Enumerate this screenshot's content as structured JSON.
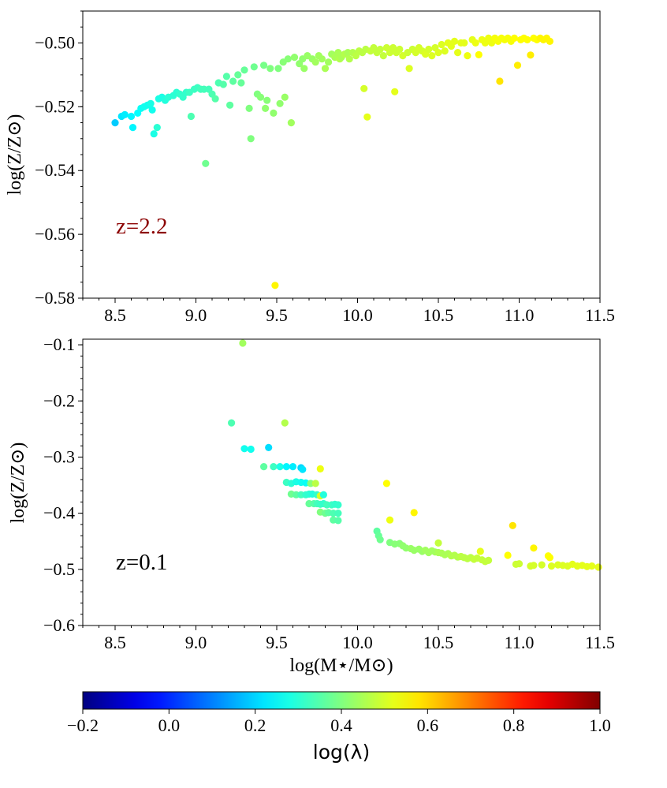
{
  "chart_data": [
    {
      "type": "scatter",
      "title": "",
      "annotation": "z=2.2",
      "annotation_color": "#8b0000",
      "xlabel": "",
      "ylabel": "log(Z/Z⊙)",
      "xlim": [
        8.3,
        11.5
      ],
      "ylim": [
        -0.58,
        -0.49
      ],
      "xticks": [
        8.5,
        9.0,
        9.5,
        10.0,
        10.5,
        11.0,
        11.5
      ],
      "xtick_labels": [
        "8.5",
        "9.0",
        "9.5",
        "10.0",
        "10.5",
        "11.0",
        "11.5"
      ],
      "yticks": [
        -0.58,
        -0.56,
        -0.54,
        -0.52,
        -0.5
      ],
      "ytick_labels": [
        "−0.58",
        "−0.56",
        "−0.54",
        "−0.52",
        "−0.50"
      ],
      "points": [
        [
          8.5,
          -0.525,
          0.19
        ],
        [
          8.54,
          -0.523,
          0.22
        ],
        [
          8.56,
          -0.5225,
          0.23
        ],
        [
          8.6,
          -0.523,
          0.24
        ],
        [
          8.61,
          -0.5265,
          0.24
        ],
        [
          8.64,
          -0.522,
          0.25
        ],
        [
          8.66,
          -0.5205,
          0.26
        ],
        [
          8.68,
          -0.52,
          0.27
        ],
        [
          8.7,
          -0.5195,
          0.27
        ],
        [
          8.72,
          -0.519,
          0.28
        ],
        [
          8.73,
          -0.521,
          0.27
        ],
        [
          8.74,
          -0.5285,
          0.28
        ],
        [
          8.76,
          -0.5265,
          0.3
        ],
        [
          8.77,
          -0.5175,
          0.28
        ],
        [
          8.79,
          -0.517,
          0.28
        ],
        [
          8.81,
          -0.518,
          0.29
        ],
        [
          8.83,
          -0.517,
          0.3
        ],
        [
          8.86,
          -0.5165,
          0.3
        ],
        [
          8.88,
          -0.5155,
          0.3
        ],
        [
          8.9,
          -0.516,
          0.31
        ],
        [
          8.92,
          -0.517,
          0.31
        ],
        [
          8.94,
          -0.5155,
          0.31
        ],
        [
          8.96,
          -0.5155,
          0.32
        ],
        [
          8.97,
          -0.523,
          0.34
        ],
        [
          8.99,
          -0.5145,
          0.32
        ],
        [
          9.01,
          -0.514,
          0.32
        ],
        [
          9.03,
          -0.5145,
          0.33
        ],
        [
          9.05,
          -0.5145,
          0.33
        ],
        [
          9.06,
          -0.5378,
          0.38
        ],
        [
          9.08,
          -0.5145,
          0.33
        ],
        [
          9.1,
          -0.516,
          0.34
        ],
        [
          9.12,
          -0.5175,
          0.35
        ],
        [
          9.14,
          -0.5125,
          0.34
        ],
        [
          9.17,
          -0.513,
          0.35
        ],
        [
          9.19,
          -0.5105,
          0.35
        ],
        [
          9.21,
          -0.5195,
          0.36
        ],
        [
          9.23,
          -0.512,
          0.36
        ],
        [
          9.26,
          -0.51,
          0.37
        ],
        [
          9.28,
          -0.5125,
          0.37
        ],
        [
          9.3,
          -0.5085,
          0.37
        ],
        [
          9.33,
          -0.5205,
          0.4
        ],
        [
          9.34,
          -0.53,
          0.4
        ],
        [
          9.36,
          -0.5075,
          0.38
        ],
        [
          9.38,
          -0.516,
          0.4
        ],
        [
          9.4,
          -0.517,
          0.41
        ],
        [
          9.42,
          -0.507,
          0.39
        ],
        [
          9.43,
          -0.5205,
          0.42
        ],
        [
          9.44,
          -0.518,
          0.41
        ],
        [
          9.46,
          -0.508,
          0.4
        ],
        [
          9.48,
          -0.522,
          0.42
        ],
        [
          9.49,
          -0.576,
          0.56
        ],
        [
          9.51,
          -0.508,
          0.4
        ],
        [
          9.52,
          -0.519,
          0.42
        ],
        [
          9.54,
          -0.506,
          0.41
        ],
        [
          9.55,
          -0.517,
          0.43
        ],
        [
          9.57,
          -0.505,
          0.41
        ],
        [
          9.59,
          -0.525,
          0.44
        ],
        [
          9.61,
          -0.5045,
          0.42
        ],
        [
          9.64,
          -0.5065,
          0.42
        ],
        [
          9.66,
          -0.505,
          0.42
        ],
        [
          9.67,
          -0.508,
          0.43
        ],
        [
          9.69,
          -0.504,
          0.43
        ],
        [
          9.72,
          -0.505,
          0.43
        ],
        [
          9.74,
          -0.506,
          0.44
        ],
        [
          9.76,
          -0.504,
          0.44
        ],
        [
          9.78,
          -0.505,
          0.44
        ],
        [
          9.8,
          -0.508,
          0.45
        ],
        [
          9.82,
          -0.506,
          0.44
        ],
        [
          9.84,
          -0.5035,
          0.44
        ],
        [
          9.86,
          -0.5045,
          0.45
        ],
        [
          9.88,
          -0.503,
          0.45
        ],
        [
          9.89,
          -0.505,
          0.46
        ],
        [
          9.9,
          -0.5045,
          0.45
        ],
        [
          9.92,
          -0.5035,
          0.46
        ],
        [
          9.94,
          -0.503,
          0.45
        ],
        [
          9.95,
          -0.505,
          0.46
        ],
        [
          9.97,
          -0.503,
          0.46
        ],
        [
          9.99,
          -0.504,
          0.47
        ],
        [
          10.01,
          -0.5025,
          0.47
        ],
        [
          10.03,
          -0.503,
          0.47
        ],
        [
          10.04,
          -0.5143,
          0.5
        ],
        [
          10.05,
          -0.502,
          0.47
        ],
        [
          10.06,
          -0.5232,
          0.52
        ],
        [
          10.08,
          -0.5025,
          0.48
        ],
        [
          10.1,
          -0.5015,
          0.48
        ],
        [
          10.12,
          -0.503,
          0.48
        ],
        [
          10.14,
          -0.502,
          0.48
        ],
        [
          10.16,
          -0.504,
          0.48
        ],
        [
          10.18,
          -0.5015,
          0.49
        ],
        [
          10.2,
          -0.503,
          0.49
        ],
        [
          10.22,
          -0.5015,
          0.49
        ],
        [
          10.23,
          -0.5153,
          0.52
        ],
        [
          10.24,
          -0.503,
          0.49
        ],
        [
          10.26,
          -0.502,
          0.49
        ],
        [
          10.28,
          -0.504,
          0.5
        ],
        [
          10.31,
          -0.503,
          0.49
        ],
        [
          10.32,
          -0.508,
          0.51
        ],
        [
          10.34,
          -0.502,
          0.49
        ],
        [
          10.36,
          -0.503,
          0.5
        ],
        [
          10.38,
          -0.5015,
          0.5
        ],
        [
          10.4,
          -0.5025,
          0.5
        ],
        [
          10.42,
          -0.5035,
          0.51
        ],
        [
          10.44,
          -0.502,
          0.5
        ],
        [
          10.46,
          -0.504,
          0.51
        ],
        [
          10.48,
          -0.5015,
          0.5
        ],
        [
          10.5,
          -0.503,
          0.51
        ],
        [
          10.52,
          -0.5005,
          0.51
        ],
        [
          10.54,
          -0.5025,
          0.51
        ],
        [
          10.56,
          -0.5,
          0.52
        ],
        [
          10.58,
          -0.501,
          0.52
        ],
        [
          10.6,
          -0.4995,
          0.52
        ],
        [
          10.62,
          -0.503,
          0.52
        ],
        [
          10.64,
          -0.5,
          0.52
        ],
        [
          10.66,
          -0.5,
          0.52
        ],
        [
          10.68,
          -0.504,
          0.53
        ],
        [
          10.71,
          -0.499,
          0.52
        ],
        [
          10.73,
          -0.5,
          0.53
        ],
        [
          10.75,
          -0.5037,
          0.55
        ],
        [
          10.77,
          -0.499,
          0.53
        ],
        [
          10.79,
          -0.5,
          0.53
        ],
        [
          10.81,
          -0.4985,
          0.53
        ],
        [
          10.83,
          -0.5,
          0.53
        ],
        [
          10.85,
          -0.4985,
          0.54
        ],
        [
          10.87,
          -0.4995,
          0.54
        ],
        [
          10.88,
          -0.512,
          0.58
        ],
        [
          10.89,
          -0.4985,
          0.54
        ],
        [
          10.91,
          -0.499,
          0.54
        ],
        [
          10.93,
          -0.4985,
          0.54
        ],
        [
          10.95,
          -0.4995,
          0.54
        ],
        [
          10.97,
          -0.4985,
          0.55
        ],
        [
          10.99,
          -0.507,
          0.57
        ],
        [
          11.01,
          -0.499,
          0.55
        ],
        [
          11.03,
          -0.4985,
          0.55
        ],
        [
          11.05,
          -0.499,
          0.55
        ],
        [
          11.07,
          -0.5038,
          0.57
        ],
        [
          11.09,
          -0.4985,
          0.55
        ],
        [
          11.11,
          -0.499,
          0.55
        ],
        [
          11.13,
          -0.4985,
          0.56
        ],
        [
          11.15,
          -0.499,
          0.56
        ],
        [
          11.17,
          -0.4985,
          0.56
        ],
        [
          11.19,
          -0.4995,
          0.56
        ]
      ]
    },
    {
      "type": "scatter",
      "title": "",
      "annotation": "z=0.1",
      "annotation_color": "#000000",
      "xlabel": "log(M⋆/M⊙)",
      "ylabel": "log(Z/Z⊙)",
      "xlim": [
        8.3,
        11.5
      ],
      "ylim": [
        -0.6,
        -0.09
      ],
      "xticks": [
        8.5,
        9.0,
        9.5,
        10.0,
        10.5,
        11.0,
        11.5
      ],
      "xtick_labels": [
        "8.5",
        "9.0",
        "9.5",
        "10.0",
        "10.5",
        "11.0",
        "11.5"
      ],
      "yticks": [
        -0.6,
        -0.5,
        -0.4,
        -0.3,
        -0.2,
        -0.1
      ],
      "ytick_labels": [
        "−0.6",
        "−0.5",
        "−0.4",
        "−0.3",
        "−0.2",
        "−0.1"
      ],
      "points": [
        [
          9.29,
          -0.097,
          0.44
        ],
        [
          9.22,
          -0.239,
          0.34
        ],
        [
          9.55,
          -0.239,
          0.46
        ],
        [
          9.3,
          -0.285,
          0.27
        ],
        [
          9.34,
          -0.286,
          0.27
        ],
        [
          9.45,
          -0.283,
          0.21
        ],
        [
          9.42,
          -0.317,
          0.36
        ],
        [
          9.48,
          -0.317,
          0.32
        ],
        [
          9.52,
          -0.317,
          0.28
        ],
        [
          9.56,
          -0.317,
          0.24
        ],
        [
          9.6,
          -0.317,
          0.23
        ],
        [
          9.65,
          -0.319,
          0.2
        ],
        [
          9.66,
          -0.322,
          0.22
        ],
        [
          9.77,
          -0.321,
          0.53
        ],
        [
          9.56,
          -0.345,
          0.32
        ],
        [
          9.59,
          -0.347,
          0.3
        ],
        [
          9.62,
          -0.344,
          0.28
        ],
        [
          9.65,
          -0.345,
          0.27
        ],
        [
          9.68,
          -0.346,
          0.26
        ],
        [
          9.71,
          -0.347,
          0.41
        ],
        [
          9.74,
          -0.347,
          0.47
        ],
        [
          9.59,
          -0.366,
          0.38
        ],
        [
          9.62,
          -0.367,
          0.36
        ],
        [
          9.65,
          -0.367,
          0.33
        ],
        [
          9.68,
          -0.367,
          0.31
        ],
        [
          9.7,
          -0.366,
          0.3
        ],
        [
          9.72,
          -0.366,
          0.29
        ],
        [
          9.75,
          -0.367,
          0.31
        ],
        [
          9.77,
          -0.369,
          0.5
        ],
        [
          9.79,
          -0.367,
          0.29
        ],
        [
          9.7,
          -0.383,
          0.37
        ],
        [
          9.73,
          -0.383,
          0.35
        ],
        [
          9.75,
          -0.383,
          0.33
        ],
        [
          9.77,
          -0.384,
          0.32
        ],
        [
          9.79,
          -0.383,
          0.31
        ],
        [
          9.81,
          -0.385,
          0.33
        ],
        [
          9.84,
          -0.385,
          0.32
        ],
        [
          9.86,
          -0.384,
          0.31
        ],
        [
          9.88,
          -0.385,
          0.31
        ],
        [
          9.77,
          -0.398,
          0.4
        ],
        [
          9.8,
          -0.4,
          0.38
        ],
        [
          9.82,
          -0.399,
          0.36
        ],
        [
          9.85,
          -0.4,
          0.34
        ],
        [
          9.88,
          -0.4,
          0.33
        ],
        [
          9.85,
          -0.412,
          0.36
        ],
        [
          9.88,
          -0.413,
          0.35
        ],
        [
          10.12,
          -0.432,
          0.36
        ],
        [
          10.13,
          -0.44,
          0.37
        ],
        [
          10.14,
          -0.447,
          0.38
        ],
        [
          10.18,
          -0.347,
          0.55
        ],
        [
          10.2,
          -0.412,
          0.53
        ],
        [
          10.2,
          -0.452,
          0.4
        ],
        [
          10.23,
          -0.455,
          0.41
        ],
        [
          10.26,
          -0.454,
          0.41
        ],
        [
          10.28,
          -0.458,
          0.42
        ],
        [
          10.3,
          -0.462,
          0.42
        ],
        [
          10.33,
          -0.463,
          0.43
        ],
        [
          10.35,
          -0.399,
          0.56
        ],
        [
          10.35,
          -0.466,
          0.43
        ],
        [
          10.38,
          -0.464,
          0.43
        ],
        [
          10.4,
          -0.468,
          0.43
        ],
        [
          10.42,
          -0.466,
          0.44
        ],
        [
          10.44,
          -0.47,
          0.44
        ],
        [
          10.46,
          -0.467,
          0.44
        ],
        [
          10.48,
          -0.469,
          0.44
        ],
        [
          10.5,
          -0.453,
          0.48
        ],
        [
          10.5,
          -0.47,
          0.45
        ],
        [
          10.52,
          -0.471,
          0.45
        ],
        [
          10.54,
          -0.474,
          0.45
        ],
        [
          10.56,
          -0.472,
          0.45
        ],
        [
          10.58,
          -0.476,
          0.46
        ],
        [
          10.6,
          -0.475,
          0.46
        ],
        [
          10.62,
          -0.478,
          0.46
        ],
        [
          10.64,
          -0.477,
          0.47
        ],
        [
          10.66,
          -0.479,
          0.47
        ],
        [
          10.68,
          -0.481,
          0.47
        ],
        [
          10.7,
          -0.479,
          0.47
        ],
        [
          10.72,
          -0.482,
          0.48
        ],
        [
          10.74,
          -0.48,
          0.48
        ],
        [
          10.76,
          -0.468,
          0.52
        ],
        [
          10.77,
          -0.483,
          0.48
        ],
        [
          10.79,
          -0.486,
          0.48
        ],
        [
          10.81,
          -0.484,
          0.48
        ],
        [
          10.93,
          -0.475,
          0.55
        ],
        [
          10.96,
          -0.422,
          0.58
        ],
        [
          10.98,
          -0.491,
          0.49
        ],
        [
          11.0,
          -0.49,
          0.49
        ],
        [
          11.07,
          -0.494,
          0.5
        ],
        [
          11.09,
          -0.462,
          0.56
        ],
        [
          11.09,
          -0.493,
          0.5
        ],
        [
          11.14,
          -0.492,
          0.5
        ],
        [
          11.18,
          -0.476,
          0.55
        ],
        [
          11.19,
          -0.479,
          0.55
        ],
        [
          11.2,
          -0.494,
          0.51
        ],
        [
          11.24,
          -0.492,
          0.51
        ],
        [
          11.27,
          -0.493,
          0.51
        ],
        [
          11.3,
          -0.494,
          0.51
        ],
        [
          11.33,
          -0.491,
          0.52
        ],
        [
          11.36,
          -0.494,
          0.52
        ],
        [
          11.39,
          -0.493,
          0.52
        ],
        [
          11.42,
          -0.495,
          0.52
        ],
        [
          11.45,
          -0.494,
          0.52
        ],
        [
          11.49,
          -0.496,
          0.52
        ]
      ]
    }
  ],
  "colorbar": {
    "label": "log(λ)",
    "range": [
      -0.2,
      1.0
    ],
    "ticks": [
      -0.2,
      0.0,
      0.2,
      0.4,
      0.6,
      0.8,
      1.0
    ],
    "tick_labels": [
      "−0.2",
      "0.0",
      "0.2",
      "0.4",
      "0.6",
      "0.8",
      "1.0"
    ],
    "colormap": "jet"
  }
}
